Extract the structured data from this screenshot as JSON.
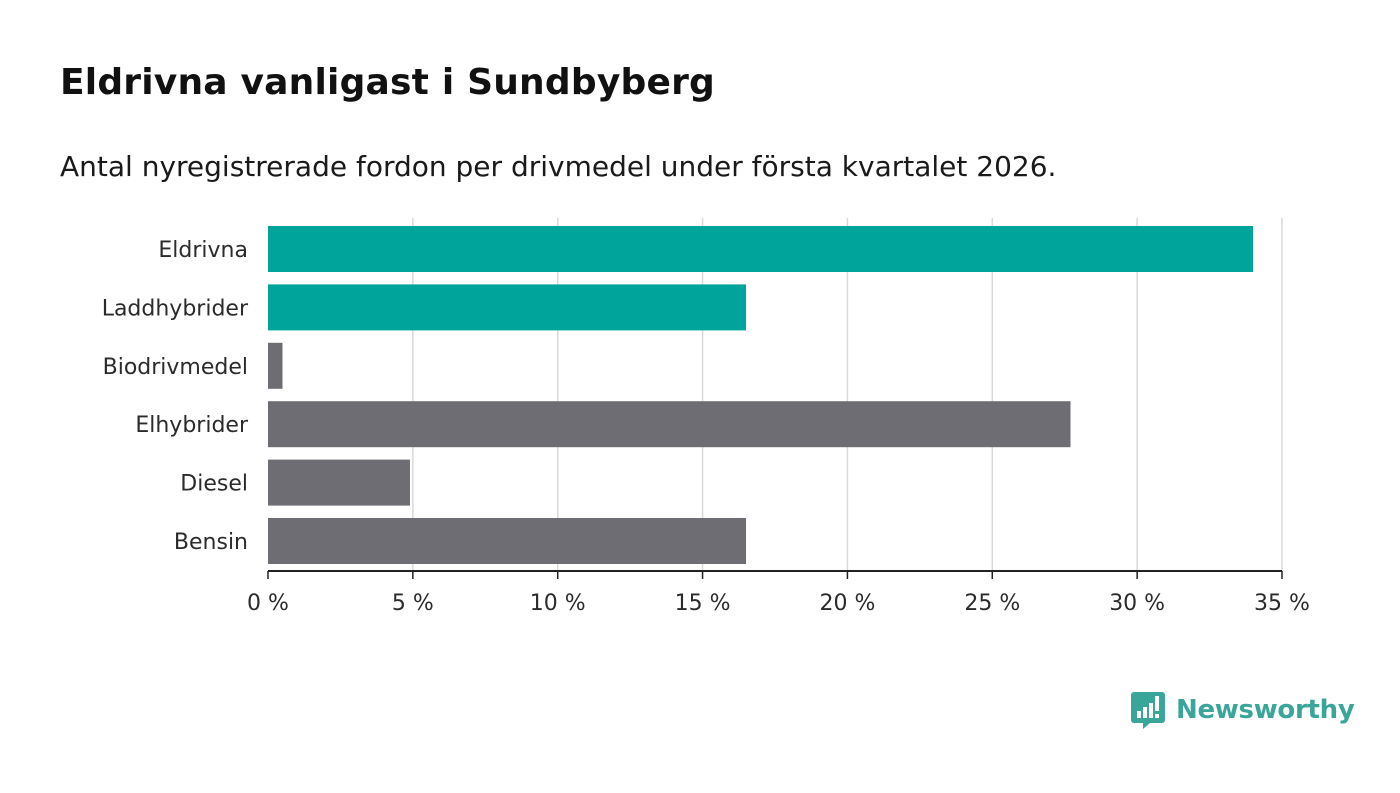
{
  "title": "Eldrivna vanligast i Sundbyberg",
  "subtitle": "Antal nyregistrerade fordon per drivmedel under första kvartalet 2026.",
  "colors": {
    "highlight": "#00a49a",
    "neutral": "#6e6d74",
    "grid": "#d9d9d9",
    "axis": "#222222",
    "logo": "#3aa69a"
  },
  "chart_data": {
    "type": "bar",
    "orientation": "horizontal",
    "categories": [
      "Eldrivna",
      "Laddhybrider",
      "Biodrivmedel",
      "Elhybrider",
      "Diesel",
      "Bensin"
    ],
    "values": [
      34.0,
      16.5,
      0.5,
      27.7,
      4.9,
      16.5
    ],
    "highlighted": [
      true,
      true,
      false,
      false,
      false,
      false
    ],
    "xlim": [
      0,
      35
    ],
    "xticks": [
      0,
      5,
      10,
      15,
      20,
      25,
      30,
      35
    ],
    "xtick_labels": [
      "0 %",
      "5 %",
      "10 %",
      "15 %",
      "20 %",
      "25 %",
      "30 %",
      "35 %"
    ],
    "xlabel": "",
    "ylabel": "",
    "grid": true
  },
  "logo": {
    "icon": "newsworthy-chart-icon",
    "text": "Newsworthy"
  }
}
